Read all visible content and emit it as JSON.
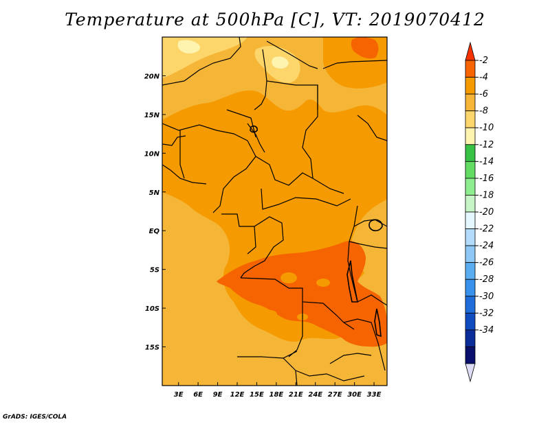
{
  "chart_data": {
    "type": "heatmap",
    "title": "Temperature at 500hPa [C], VT: 2019070412",
    "variable": "Temperature at 500hPa",
    "units": "C",
    "valid_time": "2019070412",
    "x_axis": {
      "ticks": [
        3,
        6,
        9,
        12,
        15,
        18,
        21,
        24,
        27,
        30,
        33
      ],
      "tick_labels": [
        "3E",
        "6E",
        "9E",
        "12E",
        "15E",
        "18E",
        "21E",
        "24E",
        "27E",
        "30E",
        "33E"
      ],
      "range": [
        0.5,
        35
      ]
    },
    "y_axis": {
      "ticks": [
        20,
        15,
        10,
        5,
        0,
        -5,
        -10,
        -15
      ],
      "tick_labels": [
        "20N",
        "15N",
        "10N",
        "5N",
        "EQ",
        "5S",
        "10S",
        "15S"
      ],
      "range": [
        -20,
        25
      ]
    },
    "colorbar": {
      "levels": [
        "-2",
        "-4",
        "-6",
        "-8",
        "-10",
        "-12",
        "-14",
        "-16",
        "-18",
        "-20",
        "-22",
        "-24",
        "-26",
        "-28",
        "-30",
        "-32",
        "-34"
      ],
      "colors": [
        "#f53300",
        "#f56400",
        "#f59a00",
        "#f5b638",
        "#fcd66a",
        "#fff3b0",
        "#37c246",
        "#63dc63",
        "#8eed8e",
        "#c7f5c7",
        "#e5f7ff",
        "#b3dcfb",
        "#8ec8f5",
        "#5aaef0",
        "#3891ec",
        "#1f6ddb",
        "#0f4cbf",
        "#0b2d99",
        "#09106b",
        "#dcdcf5"
      ]
    },
    "dominant_value_range": [
      -8,
      -4
    ],
    "warm_core_region": "southern Congo basin to Zambia, around 5S-17S, 13E-34E (-4 to -2 C)",
    "cool_region": "northern Sahara / Libya, around 20N-25N (-10 to -8 C)"
  },
  "credit": "GrADS: IGES/COLA"
}
